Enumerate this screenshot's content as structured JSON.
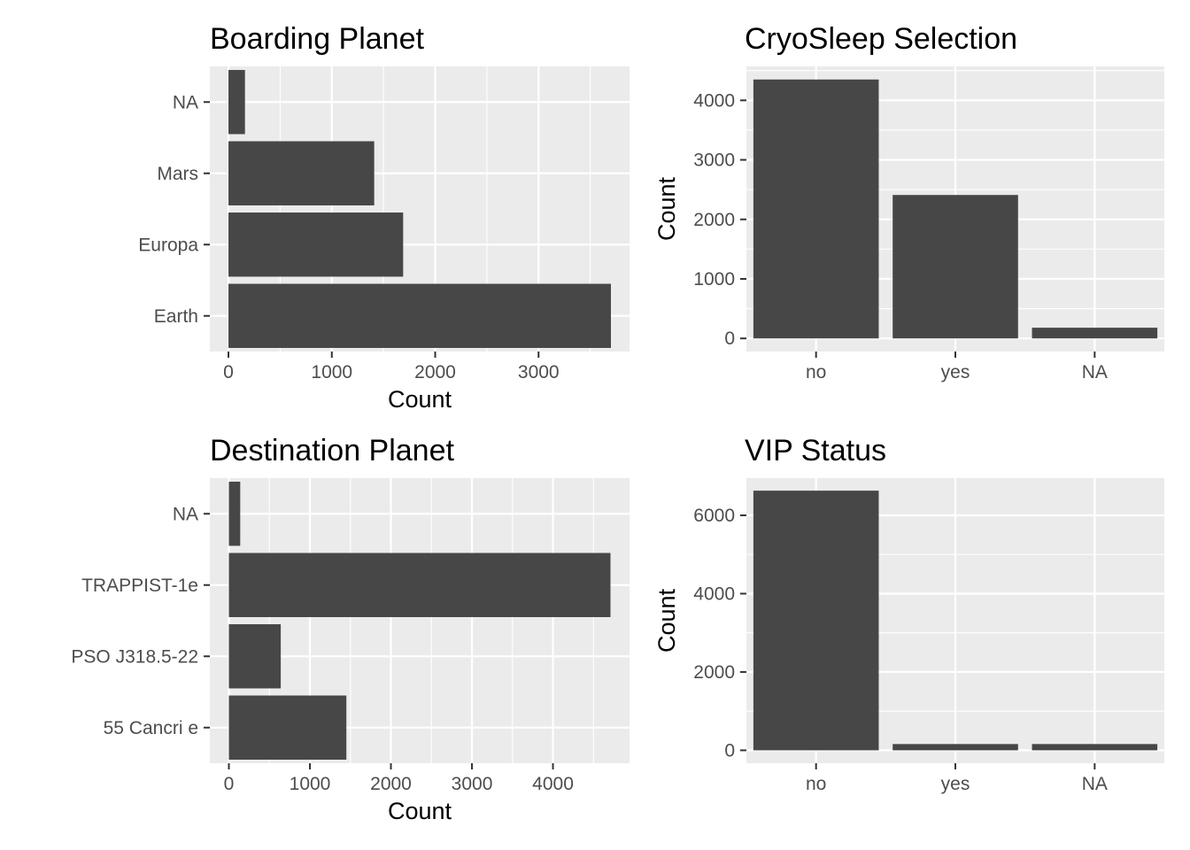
{
  "chart_data": [
    {
      "id": "boarding",
      "type": "bar",
      "orientation": "horizontal",
      "title": "Boarding Planet",
      "xlabel": "Count",
      "ylabel": "",
      "categories": [
        "Earth",
        "Europa",
        "Mars",
        "NA"
      ],
      "values": [
        3700,
        1690,
        1410,
        160
      ],
      "xlim": [
        -180,
        3880
      ],
      "ticks": [
        0,
        1000,
        2000,
        3000
      ],
      "grid": true
    },
    {
      "id": "cryosleep",
      "type": "bar",
      "orientation": "vertical",
      "title": "CryoSleep Selection",
      "xlabel": "",
      "ylabel": "Count",
      "categories": [
        "no",
        "yes",
        "NA"
      ],
      "values": [
        4350,
        2410,
        180
      ],
      "ylim": [
        -220,
        4570
      ],
      "ticks": [
        0,
        1000,
        2000,
        3000,
        4000
      ],
      "grid": true
    },
    {
      "id": "destination",
      "type": "bar",
      "orientation": "horizontal",
      "title": "Destination Planet",
      "xlabel": "Count",
      "ylabel": "",
      "categories": [
        "55 Cancri e",
        "PSO J318.5-22",
        "TRAPPIST-1e",
        "NA"
      ],
      "values": [
        1450,
        640,
        4710,
        140
      ],
      "xlim": [
        -235,
        4945
      ],
      "ticks": [
        0,
        1000,
        2000,
        3000,
        4000
      ],
      "grid": true
    },
    {
      "id": "vip",
      "type": "bar",
      "orientation": "vertical",
      "title": "VIP Status",
      "xlabel": "",
      "ylabel": "Count",
      "categories": [
        "no",
        "yes",
        "NA"
      ],
      "values": [
        6630,
        160,
        160
      ],
      "ylim": [
        -330,
        6950
      ],
      "ticks": [
        0,
        2000,
        4000,
        6000
      ],
      "grid": true
    }
  ],
  "colors": {
    "panel_background": "#ebebeb",
    "grid": "#ffffff",
    "bar": "#474747",
    "tick": "#333333",
    "tick_label": "#4d4d4d"
  }
}
